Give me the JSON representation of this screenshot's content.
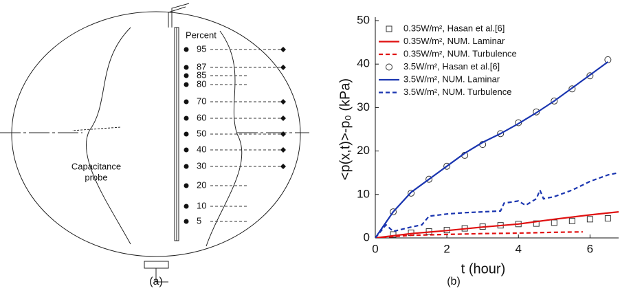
{
  "panel_a": {
    "heading": "Percent",
    "levels": [
      "95",
      "87",
      "85",
      "80",
      "70",
      "60",
      "50",
      "40",
      "30",
      "20",
      "10",
      "5"
    ],
    "probe_label": [
      "Capacitance",
      "probe"
    ],
    "caption": "(a)"
  },
  "chart_data": {
    "type": "line",
    "ylabel": "<p(x,t)>-p₀ (kPa)",
    "xlabel": "t (hour)",
    "caption": "(b)",
    "xlim": [
      0,
      6.8
    ],
    "xticks": [
      0,
      2,
      4,
      6
    ],
    "ylim": [
      0,
      50
    ],
    "yticks": [
      0,
      10,
      20,
      30,
      40,
      50
    ],
    "series": [
      {
        "name": "0.35W/m², Hasan et al.[6]",
        "color": "#333333",
        "marker": "square",
        "dash": false,
        "x": [
          0.5,
          1,
          1.5,
          2,
          2.5,
          3,
          3.5,
          4,
          4.5,
          5,
          5.5,
          6,
          6.5
        ],
        "values": [
          0.8,
          1.2,
          1.5,
          1.8,
          2.2,
          2.6,
          2.9,
          3.2,
          3.3,
          3.5,
          3.9,
          4.3,
          4.5
        ]
      },
      {
        "name": "0.35W/m², NUM. Laminar",
        "color": "#e01010",
        "marker": null,
        "dash": false,
        "x": [
          0,
          1,
          2,
          3,
          4,
          5,
          6,
          6.8
        ],
        "values": [
          0,
          1,
          1.7,
          2.5,
          3.2,
          4.3,
          5.3,
          6
        ]
      },
      {
        "name": "0.35W/m², NUM. Turbulence",
        "color": "#e01010",
        "marker": null,
        "dash": true,
        "x": [
          0,
          1,
          2,
          3,
          4,
          5,
          5.8
        ],
        "values": [
          0,
          0.6,
          0.8,
          1,
          1.1,
          1.3,
          1.4
        ]
      },
      {
        "name": "3.5W/m², Hasan et al.[6]",
        "color": "#333333",
        "marker": "circle",
        "dash": false,
        "x": [
          0.5,
          1,
          1.5,
          2,
          2.5,
          3,
          3.5,
          4,
          4.5,
          5,
          5.5,
          6,
          6.5
        ],
        "values": [
          6,
          10.3,
          13.5,
          16.5,
          19,
          21.5,
          24,
          26.5,
          29,
          31.5,
          34.3,
          37.3,
          41
        ]
      },
      {
        "name": "3.5W/m², NUM. Laminar",
        "color": "#1a35b0",
        "marker": null,
        "dash": false,
        "x": [
          0,
          0.5,
          1,
          1.5,
          2,
          2.5,
          3,
          3.5,
          4,
          4.5,
          5,
          5.5,
          6,
          6.5
        ],
        "values": [
          0,
          6,
          10.5,
          13.5,
          16.5,
          19.5,
          22,
          24,
          26.3,
          28.8,
          31.5,
          34.5,
          37.5,
          40.5
        ]
      },
      {
        "name": "3.5W/m², NUM. Turbulence",
        "color": "#1a35b0",
        "marker": null,
        "dash": true,
        "x": [
          0,
          0.3,
          0.5,
          1,
          1.3,
          1.5,
          2,
          2.5,
          3,
          3.5,
          3.6,
          4,
          4.2,
          4.5,
          4.6,
          4.7,
          5,
          5.5,
          6,
          6.5,
          6.8
        ],
        "values": [
          0,
          3,
          1.5,
          2.5,
          3,
          5,
          5.5,
          5.8,
          6,
          6.2,
          8,
          8.5,
          7.5,
          9,
          11,
          9,
          9.5,
          11,
          13,
          14.5,
          15
        ]
      }
    ]
  }
}
